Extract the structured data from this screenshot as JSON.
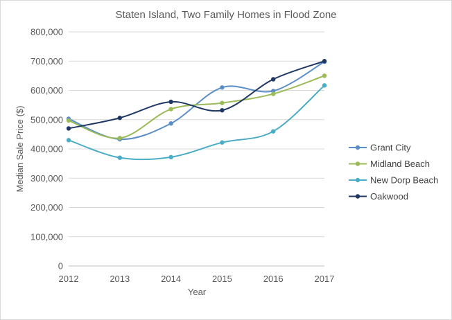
{
  "chart_data": {
    "type": "line",
    "title": "Staten Island, Two Family Homes in Flood Zone",
    "xlabel": "Year",
    "ylabel": "Median Sale Price ($)",
    "x": [
      2012,
      2013,
      2014,
      2015,
      2016,
      2017
    ],
    "x_tick_labels": [
      "2012",
      "2013",
      "2014",
      "2015",
      "2016",
      "2017"
    ],
    "ylim": [
      0,
      800000
    ],
    "y_ticks": [
      0,
      100000,
      200000,
      300000,
      400000,
      500000,
      600000,
      700000,
      800000
    ],
    "y_tick_labels": [
      "0",
      "100,000",
      "200,000",
      "300,000",
      "400,000",
      "500,000",
      "600,000",
      "700,000",
      "800,000"
    ],
    "grid": true,
    "legend_position": "right",
    "smooth": true,
    "series": [
      {
        "name": "Grant City",
        "color": "#5b8ec7",
        "values": [
          503000,
          433000,
          487000,
          610000,
          598000,
          698000
        ]
      },
      {
        "name": "Midland Beach",
        "color": "#9bbb59",
        "values": [
          497000,
          437000,
          536000,
          557000,
          588000,
          650000
        ]
      },
      {
        "name": "New Dorp Beach",
        "color": "#4bacc6",
        "values": [
          430000,
          370000,
          372000,
          422000,
          460000,
          617000
        ]
      },
      {
        "name": "Oakwood",
        "color": "#1f3864",
        "values": [
          470000,
          506000,
          561000,
          532000,
          638000,
          700000
        ]
      }
    ]
  }
}
